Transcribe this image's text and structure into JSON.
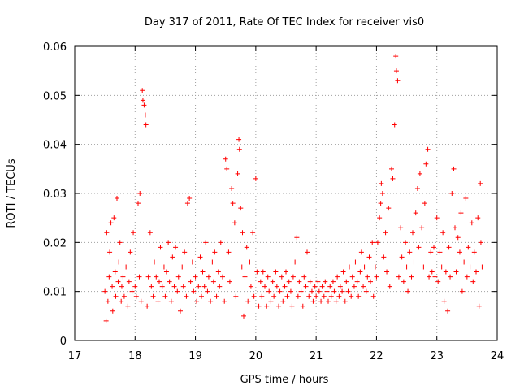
{
  "chart_data": {
    "type": "scatter",
    "title": "Day 317 of 2011, Rate Of TEC Index for receiver vis0",
    "xlabel": "GPS time / hours",
    "ylabel": "ROTI / TECUs",
    "xlim": [
      17,
      24
    ],
    "ylim": [
      0,
      0.06
    ],
    "xticks": [
      "17",
      "18",
      "19",
      "20",
      "21",
      "22",
      "23",
      "24"
    ],
    "yticks": [
      "0",
      "0.01",
      "0.02",
      "0.03",
      "0.04",
      "0.05",
      "0.06"
    ],
    "grid": true,
    "marker": "+",
    "color": "#ff0000",
    "series": [
      {
        "name": "vis0 ROTI",
        "points": [
          [
            17.5,
            0.01
          ],
          [
            17.52,
            0.004
          ],
          [
            17.53,
            0.022
          ],
          [
            17.55,
            0.008
          ],
          [
            17.57,
            0.013
          ],
          [
            17.58,
            0.018
          ],
          [
            17.6,
            0.024
          ],
          [
            17.62,
            0.011
          ],
          [
            17.63,
            0.006
          ],
          [
            17.65,
            0.025
          ],
          [
            17.67,
            0.014
          ],
          [
            17.68,
            0.009
          ],
          [
            17.7,
            0.029
          ],
          [
            17.72,
            0.012
          ],
          [
            17.73,
            0.016
          ],
          [
            17.75,
            0.02
          ],
          [
            17.77,
            0.008
          ],
          [
            17.78,
            0.011
          ],
          [
            17.8,
            0.013
          ],
          [
            17.82,
            0.009
          ],
          [
            17.85,
            0.015
          ],
          [
            17.88,
            0.007
          ],
          [
            17.9,
            0.012
          ],
          [
            17.92,
            0.018
          ],
          [
            17.95,
            0.01
          ],
          [
            17.97,
            0.022
          ],
          [
            18.0,
            0.011
          ],
          [
            18.02,
            0.009
          ],
          [
            18.05,
            0.028
          ],
          [
            18.07,
            0.013
          ],
          [
            18.08,
            0.03
          ],
          [
            18.1,
            0.008
          ],
          [
            18.12,
            0.051
          ],
          [
            18.13,
            0.049
          ],
          [
            18.15,
            0.048
          ],
          [
            18.17,
            0.046
          ],
          [
            18.18,
            0.044
          ],
          [
            18.2,
            0.007
          ],
          [
            18.22,
            0.013
          ],
          [
            18.25,
            0.022
          ],
          [
            18.27,
            0.011
          ],
          [
            18.3,
            0.009
          ],
          [
            18.32,
            0.016
          ],
          [
            18.35,
            0.013
          ],
          [
            18.38,
            0.008
          ],
          [
            18.4,
            0.012
          ],
          [
            18.42,
            0.019
          ],
          [
            18.45,
            0.011
          ],
          [
            18.48,
            0.015
          ],
          [
            18.5,
            0.009
          ],
          [
            18.52,
            0.014
          ],
          [
            18.55,
            0.02
          ],
          [
            18.57,
            0.012
          ],
          [
            18.6,
            0.008
          ],
          [
            18.62,
            0.017
          ],
          [
            18.65,
            0.011
          ],
          [
            18.67,
            0.019
          ],
          [
            18.7,
            0.01
          ],
          [
            18.72,
            0.013
          ],
          [
            18.75,
            0.006
          ],
          [
            18.78,
            0.015
          ],
          [
            18.8,
            0.011
          ],
          [
            18.82,
            0.018
          ],
          [
            18.85,
            0.009
          ],
          [
            18.87,
            0.028
          ],
          [
            18.9,
            0.029
          ],
          [
            18.92,
            0.012
          ],
          [
            18.95,
            0.016
          ],
          [
            18.97,
            0.01
          ],
          [
            19.0,
            0.013
          ],
          [
            19.02,
            0.008
          ],
          [
            19.05,
            0.011
          ],
          [
            19.08,
            0.017
          ],
          [
            19.1,
            0.009
          ],
          [
            19.12,
            0.014
          ],
          [
            19.15,
            0.011
          ],
          [
            19.17,
            0.02
          ],
          [
            19.2,
            0.01
          ],
          [
            19.22,
            0.013
          ],
          [
            19.25,
            0.008
          ],
          [
            19.28,
            0.016
          ],
          [
            19.3,
            0.012
          ],
          [
            19.32,
            0.018
          ],
          [
            19.35,
            0.009
          ],
          [
            19.38,
            0.014
          ],
          [
            19.4,
            0.011
          ],
          [
            19.42,
            0.02
          ],
          [
            19.45,
            0.013
          ],
          [
            19.48,
            0.008
          ],
          [
            19.5,
            0.037
          ],
          [
            19.52,
            0.035
          ],
          [
            19.55,
            0.018
          ],
          [
            19.57,
            0.012
          ],
          [
            19.6,
            0.031
          ],
          [
            19.62,
            0.028
          ],
          [
            19.65,
            0.024
          ],
          [
            19.67,
            0.009
          ],
          [
            19.7,
            0.034
          ],
          [
            19.72,
            0.041
          ],
          [
            19.73,
            0.039
          ],
          [
            19.75,
            0.027
          ],
          [
            19.77,
            0.015
          ],
          [
            19.78,
            0.022
          ],
          [
            19.8,
            0.005
          ],
          [
            19.82,
            0.013
          ],
          [
            19.85,
            0.019
          ],
          [
            19.87,
            0.008
          ],
          [
            19.9,
            0.016
          ],
          [
            19.92,
            0.011
          ],
          [
            19.95,
            0.022
          ],
          [
            19.97,
            0.009
          ],
          [
            20.0,
            0.033
          ],
          [
            20.02,
            0.014
          ],
          [
            20.05,
            0.007
          ],
          [
            20.08,
            0.012
          ],
          [
            20.1,
            0.009
          ],
          [
            20.12,
            0.014
          ],
          [
            20.15,
            0.011
          ],
          [
            20.18,
            0.007
          ],
          [
            20.2,
            0.013
          ],
          [
            20.22,
            0.01
          ],
          [
            20.25,
            0.008
          ],
          [
            20.28,
            0.012
          ],
          [
            20.3,
            0.009
          ],
          [
            20.33,
            0.014
          ],
          [
            20.35,
            0.011
          ],
          [
            20.38,
            0.007
          ],
          [
            20.4,
            0.01
          ],
          [
            20.43,
            0.013
          ],
          [
            20.45,
            0.008
          ],
          [
            20.48,
            0.011
          ],
          [
            20.5,
            0.014
          ],
          [
            20.52,
            0.009
          ],
          [
            20.55,
            0.012
          ],
          [
            20.58,
            0.01
          ],
          [
            20.6,
            0.007
          ],
          [
            20.62,
            0.013
          ],
          [
            20.65,
            0.016
          ],
          [
            20.68,
            0.021
          ],
          [
            20.7,
            0.009
          ],
          [
            20.72,
            0.012
          ],
          [
            20.75,
            0.01
          ],
          [
            20.78,
            0.007
          ],
          [
            20.8,
            0.013
          ],
          [
            20.83,
            0.011
          ],
          [
            20.85,
            0.018
          ],
          [
            20.88,
            0.009
          ],
          [
            20.9,
            0.012
          ],
          [
            20.93,
            0.01
          ],
          [
            20.95,
            0.008
          ],
          [
            20.98,
            0.011
          ],
          [
            21.0,
            0.009
          ],
          [
            21.03,
            0.012
          ],
          [
            21.05,
            0.01
          ],
          [
            21.08,
            0.008
          ],
          [
            21.1,
            0.011
          ],
          [
            21.13,
            0.009
          ],
          [
            21.15,
            0.012
          ],
          [
            21.18,
            0.01
          ],
          [
            21.2,
            0.008
          ],
          [
            21.23,
            0.011
          ],
          [
            21.25,
            0.009
          ],
          [
            21.28,
            0.012
          ],
          [
            21.3,
            0.01
          ],
          [
            21.33,
            0.008
          ],
          [
            21.35,
            0.013
          ],
          [
            21.38,
            0.009
          ],
          [
            21.4,
            0.011
          ],
          [
            21.43,
            0.01
          ],
          [
            21.45,
            0.014
          ],
          [
            21.48,
            0.008
          ],
          [
            21.5,
            0.012
          ],
          [
            21.53,
            0.01
          ],
          [
            21.55,
            0.015
          ],
          [
            21.58,
            0.009
          ],
          [
            21.6,
            0.013
          ],
          [
            21.63,
            0.011
          ],
          [
            21.65,
            0.016
          ],
          [
            21.68,
            0.012
          ],
          [
            21.7,
            0.009
          ],
          [
            21.73,
            0.014
          ],
          [
            21.75,
            0.018
          ],
          [
            21.78,
            0.011
          ],
          [
            21.8,
            0.015
          ],
          [
            21.83,
            0.01
          ],
          [
            21.85,
            0.013
          ],
          [
            21.88,
            0.017
          ],
          [
            21.9,
            0.012
          ],
          [
            21.93,
            0.02
          ],
          [
            21.95,
            0.009
          ],
          [
            21.98,
            0.015
          ],
          [
            22.0,
            0.013
          ],
          [
            22.02,
            0.02
          ],
          [
            22.05,
            0.025
          ],
          [
            22.07,
            0.028
          ],
          [
            22.08,
            0.032
          ],
          [
            22.1,
            0.03
          ],
          [
            22.12,
            0.017
          ],
          [
            22.15,
            0.022
          ],
          [
            22.17,
            0.014
          ],
          [
            22.2,
            0.027
          ],
          [
            22.22,
            0.011
          ],
          [
            22.25,
            0.035
          ],
          [
            22.27,
            0.033
          ],
          [
            22.3,
            0.044
          ],
          [
            22.32,
            0.058
          ],
          [
            22.33,
            0.055
          ],
          [
            22.35,
            0.053
          ],
          [
            22.37,
            0.013
          ],
          [
            22.4,
            0.023
          ],
          [
            22.42,
            0.017
          ],
          [
            22.45,
            0.012
          ],
          [
            22.48,
            0.02
          ],
          [
            22.5,
            0.015
          ],
          [
            22.52,
            0.01
          ],
          [
            22.55,
            0.018
          ],
          [
            22.58,
            0.013
          ],
          [
            22.6,
            0.022
          ],
          [
            22.62,
            0.016
          ],
          [
            22.65,
            0.026
          ],
          [
            22.68,
            0.031
          ],
          [
            22.7,
            0.019
          ],
          [
            22.72,
            0.034
          ],
          [
            22.75,
            0.023
          ],
          [
            22.78,
            0.015
          ],
          [
            22.8,
            0.028
          ],
          [
            22.82,
            0.036
          ],
          [
            22.85,
            0.039
          ],
          [
            22.87,
            0.013
          ],
          [
            22.9,
            0.018
          ],
          [
            22.92,
            0.014
          ],
          [
            22.95,
            0.019
          ],
          [
            22.97,
            0.013
          ],
          [
            23.0,
            0.025
          ],
          [
            23.02,
            0.012
          ],
          [
            23.05,
            0.018
          ],
          [
            23.08,
            0.015
          ],
          [
            23.1,
            0.022
          ],
          [
            23.12,
            0.008
          ],
          [
            23.15,
            0.014
          ],
          [
            23.18,
            0.006
          ],
          [
            23.2,
            0.019
          ],
          [
            23.22,
            0.013
          ],
          [
            23.25,
            0.03
          ],
          [
            23.28,
            0.035
          ],
          [
            23.3,
            0.023
          ],
          [
            23.32,
            0.014
          ],
          [
            23.35,
            0.021
          ],
          [
            23.38,
            0.018
          ],
          [
            23.4,
            0.026
          ],
          [
            23.42,
            0.01
          ],
          [
            23.45,
            0.016
          ],
          [
            23.48,
            0.029
          ],
          [
            23.5,
            0.013
          ],
          [
            23.52,
            0.019
          ],
          [
            23.55,
            0.015
          ],
          [
            23.58,
            0.024
          ],
          [
            23.6,
            0.012
          ],
          [
            23.62,
            0.018
          ],
          [
            23.65,
            0.014
          ],
          [
            23.68,
            0.025
          ],
          [
            23.7,
            0.007
          ],
          [
            23.72,
            0.032
          ],
          [
            23.73,
            0.02
          ],
          [
            23.75,
            0.015
          ]
        ]
      }
    ]
  }
}
